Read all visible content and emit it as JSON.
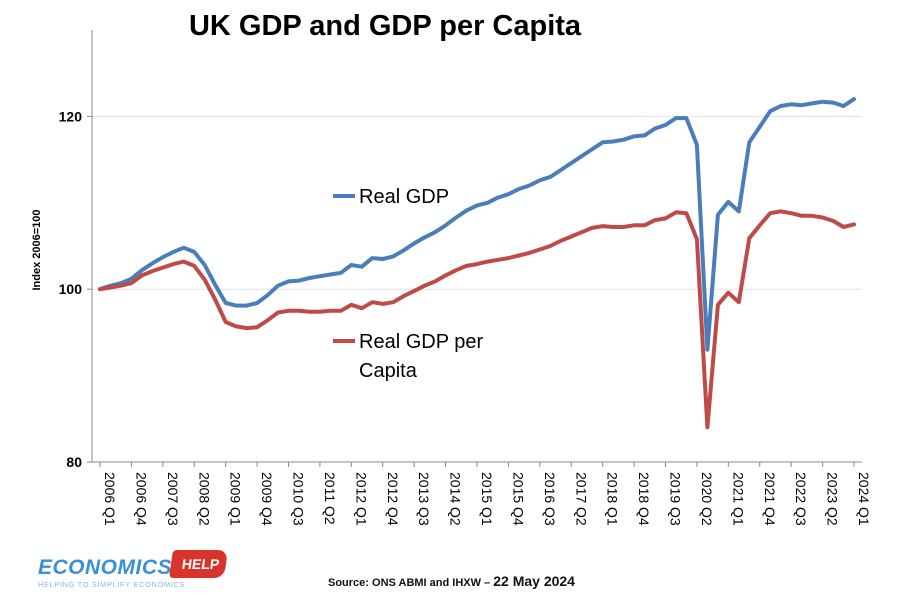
{
  "chart_data": {
    "type": "line",
    "title": "UK GDP and GDP per Capita",
    "xlabel": "",
    "ylabel": "Index 2006=100",
    "ylim": [
      80,
      130
    ],
    "y_ticks": [
      80,
      100,
      120
    ],
    "grid": true,
    "x_tick_labels": [
      "2006 Q1",
      "2006 Q4",
      "2007 Q3",
      "2008 Q2",
      "2009 Q1",
      "2009 Q4",
      "2010 Q3",
      "2011 Q2",
      "2012 Q1",
      "2012 Q4",
      "2013 Q3",
      "2014 Q2",
      "2015 Q1",
      "2015 Q4",
      "2016 Q3",
      "2017 Q2",
      "2018 Q1",
      "2018 Q4",
      "2019 Q3",
      "2020 Q2",
      "2021 Q1",
      "2021 Q4",
      "2022 Q3",
      "2023 Q2",
      "2024 Q1"
    ],
    "x": [
      "2006 Q1",
      "2006 Q2",
      "2006 Q3",
      "2006 Q4",
      "2007 Q1",
      "2007 Q2",
      "2007 Q3",
      "2007 Q4",
      "2008 Q1",
      "2008 Q2",
      "2008 Q3",
      "2008 Q4",
      "2009 Q1",
      "2009 Q2",
      "2009 Q3",
      "2009 Q4",
      "2010 Q1",
      "2010 Q2",
      "2010 Q3",
      "2010 Q4",
      "2011 Q1",
      "2011 Q2",
      "2011 Q3",
      "2011 Q4",
      "2012 Q1",
      "2012 Q2",
      "2012 Q3",
      "2012 Q4",
      "2013 Q1",
      "2013 Q2",
      "2013 Q3",
      "2013 Q4",
      "2014 Q1",
      "2014 Q2",
      "2014 Q3",
      "2014 Q4",
      "2015 Q1",
      "2015 Q2",
      "2015 Q3",
      "2015 Q4",
      "2016 Q1",
      "2016 Q2",
      "2016 Q3",
      "2016 Q4",
      "2017 Q1",
      "2017 Q2",
      "2017 Q3",
      "2017 Q4",
      "2018 Q1",
      "2018 Q2",
      "2018 Q3",
      "2018 Q4",
      "2019 Q1",
      "2019 Q2",
      "2019 Q3",
      "2019 Q4",
      "2020 Q1",
      "2020 Q2",
      "2020 Q3",
      "2020 Q4",
      "2021 Q1",
      "2021 Q2",
      "2021 Q3",
      "2021 Q4",
      "2022 Q1",
      "2022 Q2",
      "2022 Q3",
      "2022 Q4",
      "2023 Q1",
      "2023 Q2",
      "2023 Q3",
      "2023 Q4",
      "2024 Q1"
    ],
    "series": [
      {
        "name": "Real GDP",
        "color": "#4a7ebb",
        "values": [
          100.0,
          100.4,
          100.7,
          101.2,
          102.2,
          103.0,
          103.7,
          104.3,
          104.8,
          104.3,
          102.8,
          100.5,
          98.4,
          98.1,
          98.1,
          98.4,
          99.3,
          100.4,
          100.9,
          101.0,
          101.3,
          101.5,
          101.7,
          101.9,
          102.8,
          102.6,
          103.6,
          103.5,
          103.8,
          104.5,
          105.3,
          106.0,
          106.6,
          107.4,
          108.3,
          109.1,
          109.7,
          110.0,
          110.6,
          111.0,
          111.6,
          112.0,
          112.6,
          113.0,
          113.8,
          114.6,
          115.4,
          116.2,
          117.0,
          117.1,
          117.3,
          117.7,
          117.8,
          118.6,
          119.0,
          119.8,
          119.8,
          116.7,
          93.0,
          108.6,
          110.1,
          109.0,
          117.0,
          118.8,
          120.6,
          121.2,
          121.4,
          121.3,
          121.5,
          121.7,
          121.6,
          121.2,
          122.0
        ]
      },
      {
        "name": "Real GDP per Capita",
        "color": "#be4b48",
        "values": [
          100.0,
          100.2,
          100.4,
          100.7,
          101.6,
          102.1,
          102.5,
          102.9,
          103.2,
          102.7,
          101.1,
          98.8,
          96.2,
          95.7,
          95.5,
          95.6,
          96.4,
          97.3,
          97.5,
          97.5,
          97.4,
          97.4,
          97.5,
          97.5,
          98.2,
          97.8,
          98.5,
          98.3,
          98.5,
          99.2,
          99.8,
          100.4,
          100.9,
          101.6,
          102.2,
          102.7,
          102.9,
          103.2,
          103.4,
          103.6,
          103.9,
          104.2,
          104.6,
          105.0,
          105.6,
          106.1,
          106.6,
          107.1,
          107.3,
          107.2,
          107.2,
          107.4,
          107.4,
          108.0,
          108.2,
          108.9,
          108.8,
          105.8,
          84.0,
          98.2,
          99.6,
          98.5,
          105.9,
          107.4,
          108.8,
          109.0,
          108.8,
          108.5,
          108.5,
          108.3,
          107.9,
          107.2,
          107.5
        ]
      }
    ],
    "annotations": [
      {
        "label_lines": [
          "Real GDP"
        ],
        "series": "Real GDP"
      },
      {
        "label_lines": [
          "Real GDP per",
          "Capita"
        ],
        "series": "Real GDP per Capita"
      }
    ]
  },
  "branding": {
    "logo_word": "ECONOMICS",
    "logo_badge": "HELP",
    "logo_tagline": "HELPING TO SIMPLIFY ECONOMICS",
    "source_text": "Source: ONS ABMI and IHXW – ",
    "source_date": "22 May 2024"
  }
}
